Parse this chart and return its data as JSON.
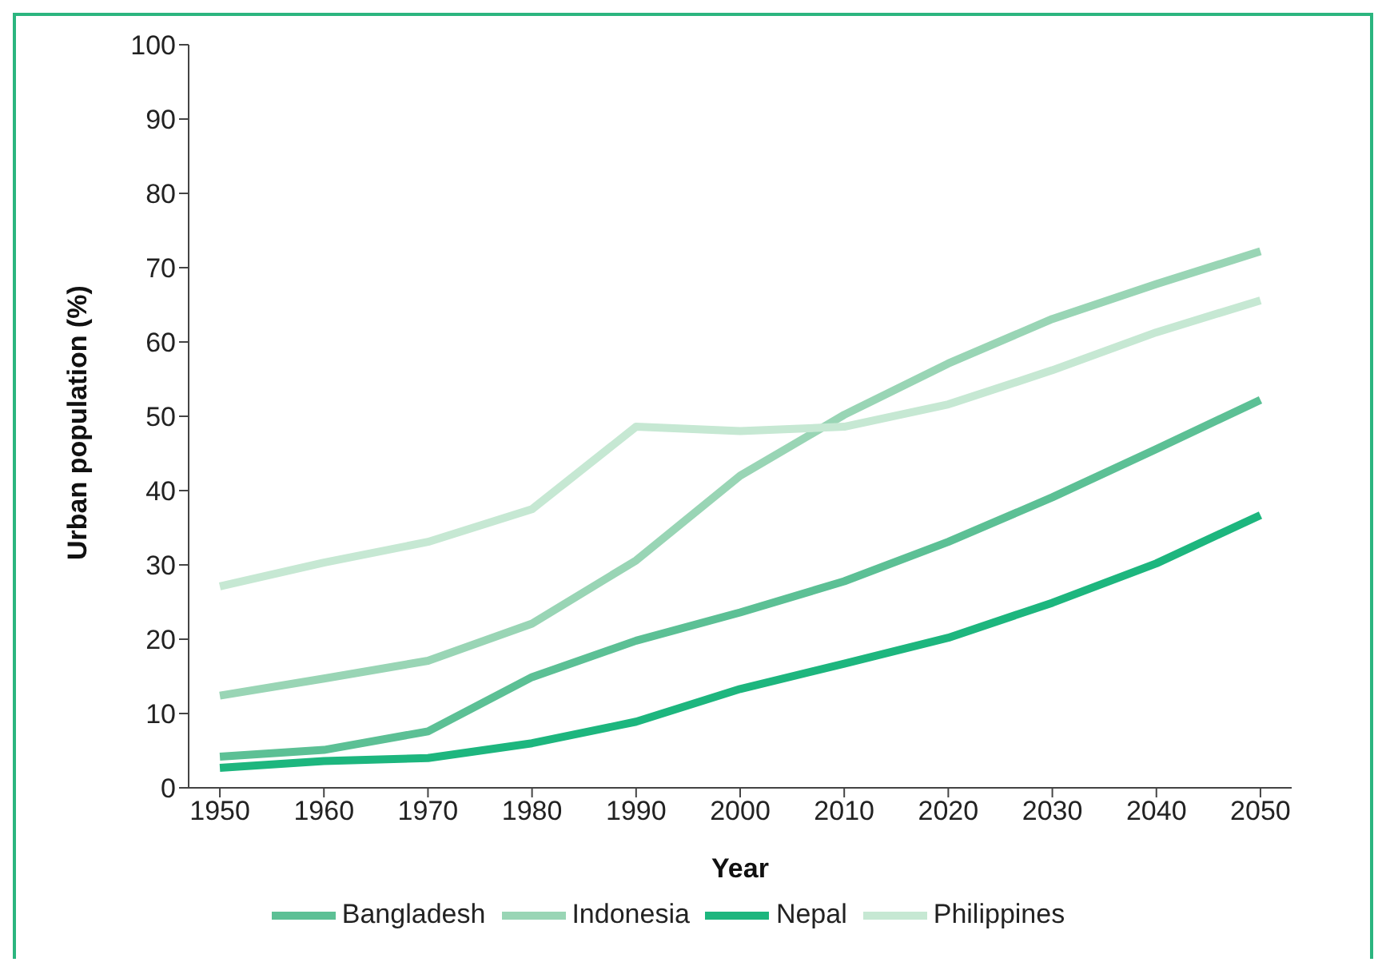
{
  "chart_data": {
    "type": "line",
    "xlabel": "Year",
    "ylabel": "Urban population (%)",
    "x": [
      1950,
      1960,
      1970,
      1980,
      1990,
      2000,
      2010,
      2020,
      2030,
      2040,
      2050
    ],
    "xlim": [
      1947,
      2053
    ],
    "xticks": [
      1950,
      1960,
      1970,
      1980,
      1990,
      2000,
      2010,
      2020,
      2030,
      2040,
      2050
    ],
    "ylim": [
      0,
      100
    ],
    "yticks": [
      0,
      10,
      20,
      30,
      40,
      50,
      60,
      70,
      80,
      90,
      100
    ],
    "grid": false,
    "legend": "bottom",
    "marker": "none",
    "line_style": "solid",
    "series": [
      {
        "name": "Nepal",
        "color": "#1db67e",
        "values": [
          2.7,
          3.6,
          4.0,
          6.0,
          8.9,
          13.3,
          16.7,
          20.2,
          24.9,
          30.2,
          36.7
        ]
      },
      {
        "name": "Bangladesh",
        "color": "#5cc095",
        "values": [
          4.2,
          5.1,
          7.6,
          14.9,
          19.8,
          23.6,
          27.8,
          33.1,
          39.1,
          45.6,
          52.2
        ]
      },
      {
        "name": "Indonesia",
        "color": "#99d5b5",
        "values": [
          12.4,
          14.7,
          17.1,
          22.1,
          30.6,
          42.0,
          50.2,
          57.1,
          63.1,
          67.8,
          72.2
        ]
      },
      {
        "name": "Philippines",
        "color": "#c6e8d3",
        "values": [
          27.1,
          30.3,
          33.1,
          37.5,
          48.6,
          48.0,
          48.6,
          51.6,
          56.2,
          61.3,
          65.6
        ]
      }
    ]
  }
}
